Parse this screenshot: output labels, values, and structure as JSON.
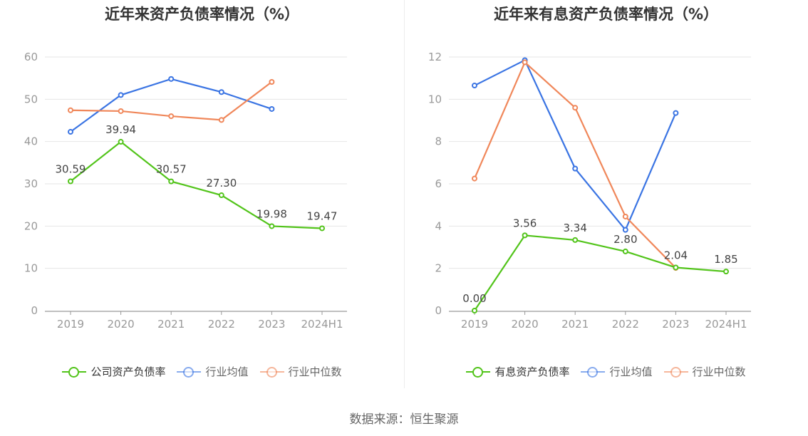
{
  "source_label": "数据来源：恒生聚源",
  "chart_data": [
    {
      "type": "line",
      "title": "近年来资产负债率情况（%）",
      "categories": [
        "2019",
        "2020",
        "2021",
        "2022",
        "2023",
        "2024H1"
      ],
      "ylim": [
        0,
        60
      ],
      "yticks": [
        0,
        10,
        20,
        30,
        40,
        50,
        60
      ],
      "grid": true,
      "legend_position": "bottom",
      "series": [
        {
          "name": "公司资产负债率",
          "color": "#52c41a",
          "labeled": true,
          "values": [
            30.59,
            39.94,
            30.57,
            27.3,
            19.98,
            19.47
          ],
          "labels": [
            "30.59",
            "39.94",
            "30.57",
            "27.30",
            "19.98",
            "19.47"
          ]
        },
        {
          "name": "行业均值",
          "color": "#3a74e3",
          "labeled": false,
          "values": [
            42.3,
            51.0,
            54.8,
            51.7,
            47.7,
            null
          ]
        },
        {
          "name": "行业中位数",
          "color": "#f0875a",
          "labeled": false,
          "values": [
            47.4,
            47.2,
            46.0,
            45.1,
            54.1,
            null
          ]
        }
      ]
    },
    {
      "type": "line",
      "title": "近年来有息资产负债率情况（%）",
      "categories": [
        "2019",
        "2020",
        "2021",
        "2022",
        "2023",
        "2024H1"
      ],
      "ylim": [
        0,
        12
      ],
      "yticks": [
        0,
        2,
        4,
        6,
        8,
        10,
        12
      ],
      "grid": true,
      "legend_position": "bottom",
      "series": [
        {
          "name": "有息资产负债率",
          "color": "#52c41a",
          "labeled": true,
          "values": [
            0.0,
            3.56,
            3.34,
            2.8,
            2.04,
            1.85
          ],
          "labels": [
            "0.00",
            "3.56",
            "3.34",
            "2.80",
            "2.04",
            "1.85"
          ]
        },
        {
          "name": "行业均值",
          "color": "#3a74e3",
          "labeled": false,
          "values": [
            10.65,
            11.85,
            6.72,
            3.82,
            9.35,
            null
          ]
        },
        {
          "name": "行业中位数",
          "color": "#f0875a",
          "labeled": false,
          "values": [
            6.25,
            11.75,
            9.6,
            4.45,
            2.02,
            null
          ]
        }
      ]
    }
  ]
}
